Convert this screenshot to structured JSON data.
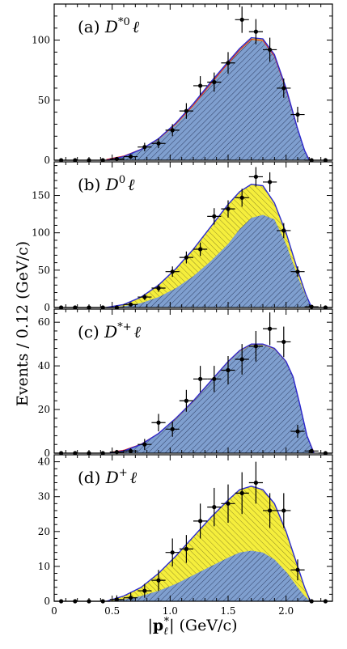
{
  "figure": {
    "ylabel": "Events / 0.12 (GeV/c)",
    "xlabel": "|p*ℓ| (GeV/c)",
    "xlabel_parts": {
      "left_bar": "|",
      "bold": "p",
      "sub": "ℓ",
      "sup": "*",
      "right_bar": "|",
      "unit": "(GeV/c)"
    },
    "x_ticks": [
      "0",
      "0.5",
      "1.0",
      "1.5",
      "2.0"
    ],
    "colors": {
      "blue_fill": "#7f9fcf",
      "yellow_fill": "#f5ee3c",
      "curve": "#2a2ad0",
      "red_line": "#e02020",
      "hatch": "#333333"
    }
  },
  "chart_data": [
    {
      "type": "histogram-fit",
      "panel": "a",
      "title": "(a) D*0ℓ",
      "title_parts": {
        "prefix": "(a) ",
        "base": "D",
        "sup": "*0",
        "suffix": "ℓ"
      },
      "xlim": [
        0,
        2.4
      ],
      "ylim": [
        0,
        130
      ],
      "y_ticks": [
        0,
        50,
        100
      ],
      "points": [
        {
          "x": 0.06,
          "y": 0,
          "err": 1
        },
        {
          "x": 0.18,
          "y": 0,
          "err": 1
        },
        {
          "x": 0.3,
          "y": 0,
          "err": 1
        },
        {
          "x": 0.42,
          "y": 0,
          "err": 1
        },
        {
          "x": 0.54,
          "y": 1,
          "err": 1
        },
        {
          "x": 0.66,
          "y": 3,
          "err": 2
        },
        {
          "x": 0.78,
          "y": 11,
          "err": 3.5
        },
        {
          "x": 0.9,
          "y": 14,
          "err": 4
        },
        {
          "x": 1.02,
          "y": 25,
          "err": 5
        },
        {
          "x": 1.14,
          "y": 41,
          "err": 6.5
        },
        {
          "x": 1.26,
          "y": 62,
          "err": 8
        },
        {
          "x": 1.38,
          "y": 65,
          "err": 8
        },
        {
          "x": 1.5,
          "y": 81,
          "err": 9
        },
        {
          "x": 1.62,
          "y": 117,
          "err": 11
        },
        {
          "x": 1.74,
          "y": 107,
          "err": 10.5
        },
        {
          "x": 1.86,
          "y": 92,
          "err": 10
        },
        {
          "x": 1.98,
          "y": 60,
          "err": 8
        },
        {
          "x": 2.1,
          "y": 38,
          "err": 6.5
        },
        {
          "x": 2.22,
          "y": 0,
          "err": 1
        },
        {
          "x": 2.34,
          "y": 0,
          "err": 1
        }
      ],
      "fit": {
        "x": [
          0.45,
          0.6,
          0.75,
          0.9,
          1.05,
          1.2,
          1.35,
          1.5,
          1.6,
          1.7,
          1.8,
          1.9,
          2.0,
          2.1,
          2.16,
          2.2
        ],
        "total": [
          0,
          3,
          9,
          18,
          31,
          47,
          65,
          82,
          93,
          102,
          101,
          88,
          60,
          26,
          8,
          0
        ],
        "blue": [
          0,
          2.8,
          8.5,
          17,
          29.5,
          45,
          63,
          80,
          91,
          100,
          99,
          86,
          58,
          25,
          7.5,
          0
        ]
      },
      "red_line": true
    },
    {
      "type": "histogram-fit",
      "panel": "b",
      "title": "(b) D0ℓ",
      "title_parts": {
        "prefix": "(b) ",
        "base": "D",
        "sup": "0",
        "suffix": "ℓ"
      },
      "xlim": [
        0,
        2.4
      ],
      "ylim": [
        0,
        195
      ],
      "y_ticks": [
        0,
        50,
        100,
        150
      ],
      "points": [
        {
          "x": 0.06,
          "y": 0,
          "err": 1
        },
        {
          "x": 0.18,
          "y": 0,
          "err": 1
        },
        {
          "x": 0.3,
          "y": 0,
          "err": 1
        },
        {
          "x": 0.42,
          "y": 0,
          "err": 1
        },
        {
          "x": 0.54,
          "y": 0,
          "err": 1
        },
        {
          "x": 0.66,
          "y": 4,
          "err": 2
        },
        {
          "x": 0.78,
          "y": 14,
          "err": 4
        },
        {
          "x": 0.9,
          "y": 26,
          "err": 5
        },
        {
          "x": 1.02,
          "y": 48,
          "err": 7
        },
        {
          "x": 1.14,
          "y": 67,
          "err": 8
        },
        {
          "x": 1.26,
          "y": 78,
          "err": 9
        },
        {
          "x": 1.38,
          "y": 122,
          "err": 11
        },
        {
          "x": 1.5,
          "y": 132,
          "err": 11.5
        },
        {
          "x": 1.62,
          "y": 147,
          "err": 12
        },
        {
          "x": 1.74,
          "y": 175,
          "err": 13
        },
        {
          "x": 1.86,
          "y": 168,
          "err": 13
        },
        {
          "x": 1.98,
          "y": 103,
          "err": 10
        },
        {
          "x": 2.1,
          "y": 48,
          "err": 7
        },
        {
          "x": 2.22,
          "y": 1,
          "err": 1
        },
        {
          "x": 2.34,
          "y": 0,
          "err": 1
        }
      ],
      "fit": {
        "x": [
          0.45,
          0.6,
          0.75,
          0.9,
          1.05,
          1.2,
          1.35,
          1.5,
          1.6,
          1.7,
          1.8,
          1.9,
          2.0,
          2.1,
          2.17,
          2.22
        ],
        "total": [
          0,
          4,
          14,
          30,
          52,
          78,
          108,
          138,
          155,
          165,
          163,
          140,
          100,
          50,
          18,
          0
        ],
        "blue": [
          0,
          2,
          6,
          14,
          26,
          42,
          62,
          85,
          105,
          120,
          124,
          118,
          85,
          42,
          15,
          0
        ]
      },
      "red_line": false
    },
    {
      "type": "histogram-fit",
      "panel": "c",
      "title": "(c) D*+ℓ",
      "title_parts": {
        "prefix": "(c) ",
        "base": "D",
        "sup": "*+",
        "suffix": "ℓ"
      },
      "xlim": [
        0,
        2.4
      ],
      "ylim": [
        0,
        66
      ],
      "y_ticks": [
        0,
        20,
        40,
        60
      ],
      "points": [
        {
          "x": 0.06,
          "y": 0,
          "err": 0.6
        },
        {
          "x": 0.18,
          "y": 0,
          "err": 0.6
        },
        {
          "x": 0.3,
          "y": 0,
          "err": 0.6
        },
        {
          "x": 0.42,
          "y": 0,
          "err": 0.6
        },
        {
          "x": 0.54,
          "y": 0.5,
          "err": 1
        },
        {
          "x": 0.66,
          "y": 1,
          "err": 1.2
        },
        {
          "x": 0.78,
          "y": 4,
          "err": 2.5
        },
        {
          "x": 0.9,
          "y": 14,
          "err": 4
        },
        {
          "x": 1.02,
          "y": 11,
          "err": 3.5
        },
        {
          "x": 1.14,
          "y": 24,
          "err": 5
        },
        {
          "x": 1.26,
          "y": 34,
          "err": 6
        },
        {
          "x": 1.38,
          "y": 34,
          "err": 6
        },
        {
          "x": 1.5,
          "y": 38,
          "err": 6.5
        },
        {
          "x": 1.62,
          "y": 43,
          "err": 7
        },
        {
          "x": 1.74,
          "y": 49,
          "err": 7
        },
        {
          "x": 1.86,
          "y": 57,
          "err": 7.5
        },
        {
          "x": 1.98,
          "y": 51,
          "err": 7
        },
        {
          "x": 2.1,
          "y": 10,
          "err": 3
        },
        {
          "x": 2.22,
          "y": 1,
          "err": 1
        },
        {
          "x": 2.34,
          "y": 0,
          "err": 0.6
        }
      ],
      "fit": {
        "x": [
          0.48,
          0.6,
          0.75,
          0.9,
          1.05,
          1.2,
          1.35,
          1.5,
          1.6,
          1.7,
          1.8,
          1.9,
          2.0,
          2.06,
          2.12,
          2.18,
          2.24
        ],
        "total": [
          0,
          1,
          4,
          9,
          16,
          24,
          33,
          42,
          47,
          50,
          50,
          48,
          42,
          35,
          22,
          8,
          0
        ],
        "blue": [
          0,
          1,
          3.8,
          8.7,
          15.5,
          23.5,
          32.5,
          41.5,
          46.5,
          49.5,
          49.5,
          47.5,
          41.5,
          34.5,
          21.5,
          7.5,
          0
        ]
      },
      "red_line": true
    },
    {
      "type": "histogram-fit",
      "panel": "d",
      "title": "(d) D+ℓ",
      "title_parts": {
        "prefix": "(d) ",
        "base": "D",
        "sup": "+",
        "suffix": "ℓ"
      },
      "xlim": [
        0,
        2.4
      ],
      "ylim": [
        0,
        42
      ],
      "y_ticks": [
        0,
        10,
        20,
        30,
        40
      ],
      "points": [
        {
          "x": 0.06,
          "y": 0,
          "err": 0.5
        },
        {
          "x": 0.18,
          "y": 0,
          "err": 0.5
        },
        {
          "x": 0.3,
          "y": 0,
          "err": 0.5
        },
        {
          "x": 0.42,
          "y": 0,
          "err": 0.5
        },
        {
          "x": 0.54,
          "y": 0.5,
          "err": 1.2
        },
        {
          "x": 0.66,
          "y": 1,
          "err": 1.5
        },
        {
          "x": 0.78,
          "y": 3,
          "err": 2
        },
        {
          "x": 0.9,
          "y": 6,
          "err": 3
        },
        {
          "x": 1.02,
          "y": 14,
          "err": 4
        },
        {
          "x": 1.14,
          "y": 15,
          "err": 4
        },
        {
          "x": 1.26,
          "y": 23,
          "err": 5
        },
        {
          "x": 1.38,
          "y": 27,
          "err": 5.5
        },
        {
          "x": 1.5,
          "y": 28,
          "err": 5.5
        },
        {
          "x": 1.62,
          "y": 31,
          "err": 6
        },
        {
          "x": 1.74,
          "y": 34,
          "err": 6
        },
        {
          "x": 1.86,
          "y": 26,
          "err": 5
        },
        {
          "x": 1.98,
          "y": 26,
          "err": 5
        },
        {
          "x": 2.1,
          "y": 9,
          "err": 3
        },
        {
          "x": 2.22,
          "y": 0,
          "err": 0.5
        },
        {
          "x": 2.34,
          "y": 0,
          "err": 0.5
        }
      ],
      "fit": {
        "x": [
          0.45,
          0.6,
          0.75,
          0.9,
          1.05,
          1.2,
          1.35,
          1.5,
          1.6,
          1.7,
          1.8,
          1.9,
          2.0,
          2.1,
          2.16,
          2.21
        ],
        "total": [
          0,
          1.5,
          4,
          8,
          13,
          18.5,
          24,
          29,
          32,
          33,
          32,
          28,
          20,
          10,
          4,
          0
        ],
        "blue": [
          0,
          0.5,
          1.5,
          3,
          5,
          7.5,
          10,
          12.5,
          14,
          14.5,
          14,
          12,
          8.5,
          4,
          1.5,
          0
        ]
      },
      "red_line": false
    }
  ]
}
